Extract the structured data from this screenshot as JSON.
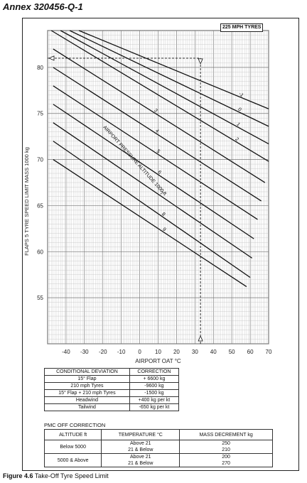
{
  "annex": "Annex 320456-Q-1",
  "caption": {
    "figure": "Figure 4.6",
    "text": "Take-Off Tyre Speed Limit"
  },
  "chart_data": {
    "type": "line",
    "tyre_label": "225 MPH TYRES",
    "xlabel": "AIRPORT OAT °C",
    "ylabel": "FLAPS 5 TYRE SPEED LIMIT MASS 1000 kg",
    "curve_label": "AIRPORT PRESSURE ALTITUDE 1000 ft",
    "xlim": [
      -50,
      70
    ],
    "ylim": [
      50,
      84
    ],
    "xticks": [
      "-40",
      "-30",
      "-20",
      "-10",
      "0",
      "10",
      "20",
      "30",
      "40",
      "50",
      "60",
      "70"
    ],
    "yticks": [
      "55",
      "60",
      "65",
      "70",
      "75",
      "80"
    ],
    "grid": true,
    "series": [
      {
        "name": "-1",
        "x": [
          -33,
          70
        ],
        "y": [
          84,
          75.5
        ]
      },
      {
        "name": "0",
        "x": [
          -38,
          70
        ],
        "y": [
          84,
          73.6
        ]
      },
      {
        "name": "1",
        "x": [
          -43,
          70
        ],
        "y": [
          84,
          71.7
        ]
      },
      {
        "name": "2",
        "x": [
          -48,
          70
        ],
        "y": [
          84,
          69.8
        ]
      },
      {
        "name": "3",
        "x": [
          -47,
          68
        ],
        "y": [
          82,
          67.5
        ]
      },
      {
        "name": "4",
        "x": [
          -47,
          66
        ],
        "y": [
          80,
          65.5
        ]
      },
      {
        "name": "5",
        "x": [
          -47,
          64
        ],
        "y": [
          78,
          63.5
        ]
      },
      {
        "name": "6",
        "x": [
          -47,
          62
        ],
        "y": [
          76,
          61.4
        ]
      },
      {
        "name": "7",
        "x": [
          -47,
          61
        ],
        "y": [
          74,
          59.3
        ]
      },
      {
        "name": "8",
        "x": [
          -47,
          60
        ],
        "y": [
          72,
          57.2
        ]
      },
      {
        "name": "9",
        "x": [
          -47,
          58
        ],
        "y": [
          70,
          56.2
        ]
      }
    ],
    "example": {
      "oat": 33,
      "mass": 81
    }
  },
  "conditional": {
    "headers": [
      "CONDITIONAL DEVIATION",
      "CORRECTION"
    ],
    "rows": [
      [
        "15° Flap",
        "+ 6600 kg"
      ],
      [
        "210 mph Tyres",
        "-9600 kg"
      ],
      [
        "15° Flap + 210 mph Tyres",
        "-1500 kg"
      ],
      [
        "Headwind",
        "+400 kg per kt"
      ],
      [
        "Tailwind",
        "-650 kg per kt"
      ]
    ]
  },
  "pmc": {
    "title": "PMC OFF CORRECTION",
    "headers": [
      "ALTITUDE  ft",
      "TEMPERATURE °C",
      "MASS DECREMENT  kg"
    ],
    "rows": [
      {
        "alt": "Below 5000",
        "t1": "Above 21",
        "t2": "21 & Below",
        "m1": "250",
        "m2": "210"
      },
      {
        "alt": "5000 & Above",
        "t1": "Above 21",
        "t2": "21 & Below",
        "m1": "200",
        "m2": "270"
      }
    ]
  }
}
